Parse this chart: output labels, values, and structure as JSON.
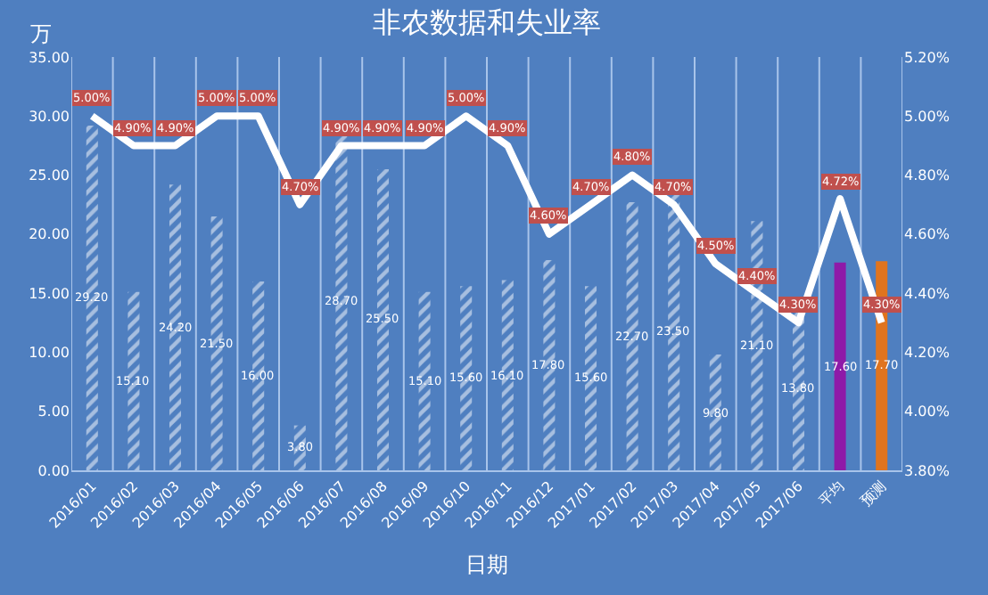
{
  "chart_data": {
    "type": "bar",
    "title": "非农数据和失业率",
    "xlabel": "日期",
    "ylabel": "万",
    "categories": [
      "2016/01",
      "2016/02",
      "2016/03",
      "2016/04",
      "2016/05",
      "2016/06",
      "2016/07",
      "2016/08",
      "2016/09",
      "2016/10",
      "2016/11",
      "2016/12",
      "2017/01",
      "2017/02",
      "2017/03",
      "2017/04",
      "2017/05",
      "2017/06",
      "平均",
      "预测"
    ],
    "series": [
      {
        "color": "#ffffff",
        "colors": [
          "#ffffff",
          "#ffffff",
          "#ffffff",
          "#ffffff",
          "#ffffff",
          "#ffffff",
          "#ffffff",
          "#ffffff",
          "#ffffff",
          "#ffffff",
          "#ffffff",
          "#ffffff",
          "#ffffff",
          "#ffffff",
          "#ffffff",
          "#ffffff",
          "#ffffff",
          "#ffffff",
          "#8e1aa8",
          "#e0741e"
        ],
        "values": [
          29.2,
          15.1,
          24.2,
          21.5,
          16.0,
          3.8,
          28.7,
          25.5,
          15.1,
          15.6,
          16.1,
          17.8,
          15.6,
          22.7,
          23.5,
          9.8,
          21.1,
          13.8,
          17.6,
          17.7
        ],
        "value_labels": [
          "29.20",
          "15.10",
          "24.20",
          "21.50",
          "16.00",
          "3.80",
          "28.70",
          "25.50",
          "15.10",
          "15.60",
          "16.10",
          "17.80",
          "15.60",
          "22.70",
          "23.50",
          "9.80",
          "21.10",
          "13.80",
          "17.60",
          "17.70"
        ]
      },
      {
        "type": "line",
        "axis": "y2",
        "color": "#ffffff",
        "values": [
          5.0,
          4.9,
          4.9,
          5.0,
          5.0,
          4.7,
          4.9,
          4.9,
          4.9,
          5.0,
          4.9,
          4.6,
          4.7,
          4.8,
          4.7,
          4.5,
          4.4,
          4.3,
          4.72,
          4.3
        ],
        "value_labels": [
          "5.00%",
          "4.90%",
          "4.90%",
          "5.00%",
          "5.00%",
          "4.70%",
          "4.90%",
          "4.90%",
          "4.90%",
          "5.00%",
          "4.90%",
          "4.60%",
          "4.70%",
          "4.80%",
          "4.70%",
          "4.50%",
          "4.40%",
          "4.30%",
          "4.72%",
          "4.30%"
        ]
      }
    ],
    "ylim": [
      0,
      35
    ],
    "yticks": [
      {
        "value": 0,
        "label": "0.00"
      },
      {
        "value": 5,
        "label": "5.00"
      },
      {
        "value": 10,
        "label": "10.00"
      },
      {
        "value": 15,
        "label": "15.00"
      },
      {
        "value": 20,
        "label": "20.00"
      },
      {
        "value": 25,
        "label": "25.00"
      },
      {
        "value": 30,
        "label": "30.00"
      },
      {
        "value": 35,
        "label": "35.00"
      }
    ],
    "y2lim": [
      3.8,
      5.2
    ],
    "y2ticks": [
      {
        "value": 3.8,
        "label": "3.80%"
      },
      {
        "value": 4.0,
        "label": "4.00%"
      },
      {
        "value": 4.2,
        "label": "4.20%"
      },
      {
        "value": 4.4,
        "label": "4.40%"
      },
      {
        "value": 4.6,
        "label": "4.60%"
      },
      {
        "value": 4.8,
        "label": "4.80%"
      },
      {
        "value": 5.0,
        "label": "5.00%"
      },
      {
        "value": 5.2,
        "label": "5.20%"
      }
    ],
    "grid": "x",
    "marker": "none"
  }
}
